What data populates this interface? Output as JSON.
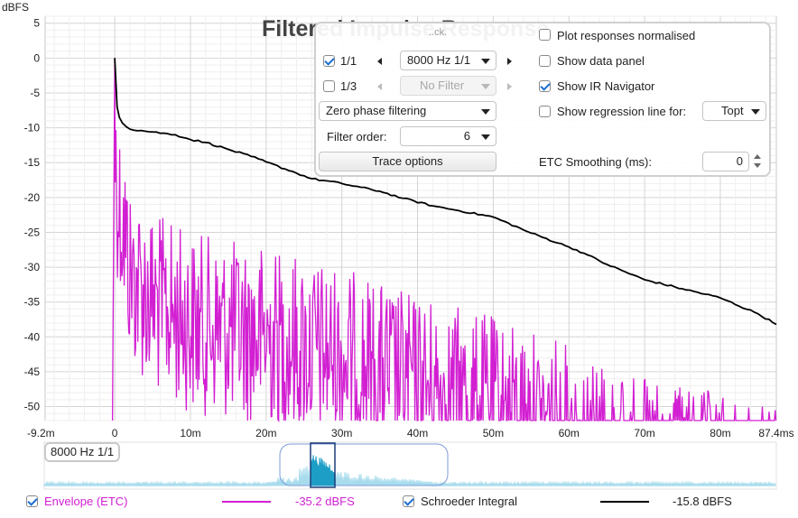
{
  "chart_data": {
    "type": "line",
    "title": "Filtered Impulse Response",
    "ylabel": "dBFS",
    "xlabel": "",
    "xlim": [
      -9.2,
      87.4
    ],
    "ylim": [
      -52,
      6
    ],
    "x_tick_labels": [
      "-9.2m",
      "0",
      "10m",
      "20m",
      "30m",
      "40m",
      "50m",
      "60m",
      "70m",
      "80m",
      "87.4ms"
    ],
    "x_tick_values": [
      -9.2,
      0,
      10,
      20,
      30,
      40,
      50,
      60,
      70,
      80,
      87.4
    ],
    "y_tick_labels": [
      "5",
      "0",
      "-5",
      "-10",
      "-15",
      "-20",
      "-25",
      "-30",
      "-35",
      "-40",
      "-45",
      "-50"
    ],
    "y_tick_values": [
      5,
      0,
      -5,
      -10,
      -15,
      -20,
      -25,
      -30,
      -35,
      -40,
      -45,
      -50
    ],
    "grid": true,
    "series": [
      {
        "name": "Envelope (ETC)",
        "color": "#d21fd2",
        "style": "dense noisy decaying envelope",
        "envelope_x": [
          0,
          0.5,
          1,
          2,
          5,
          10,
          20,
          30,
          40,
          50,
          60,
          70,
          80,
          87.4
        ],
        "envelope_peak_y": [
          0,
          -8,
          -10,
          -18,
          -22,
          -25,
          -27,
          -30,
          -34,
          -37,
          -41,
          -46,
          -48,
          -50
        ]
      },
      {
        "name": "Schroeder Integral",
        "color": "#000000",
        "x": [
          0,
          0.3,
          0.6,
          1,
          2,
          5,
          8,
          10,
          12,
          15,
          18,
          20,
          24,
          26,
          30,
          35,
          38,
          42,
          45,
          50,
          55,
          60,
          62,
          65,
          70,
          75,
          80,
          85,
          87.4
        ],
        "y": [
          0,
          -7,
          -8.5,
          -9.3,
          -10.2,
          -10.6,
          -11,
          -11.7,
          -12.1,
          -13.1,
          -14.1,
          -14.9,
          -16.5,
          -17.3,
          -18.0,
          -19.1,
          -20.1,
          -21.2,
          -21.8,
          -22.8,
          -25.1,
          -27.1,
          -28,
          -29.6,
          -31.8,
          -33.1,
          -34.4,
          -36.7,
          -38.2
        ]
      }
    ]
  },
  "overlay": {
    "partial_label": "..ck.",
    "plot_normalised_label": "Plot responses normalised",
    "row1_check_label": "1/1",
    "row1_dropdown": "8000 Hz 1/1",
    "row2_check_label": "1/3",
    "row2_dropdown": "No Filter",
    "show_data_panel_label": "Show data panel",
    "show_ir_navigator_label": "Show IR Navigator",
    "phase_dropdown": "Zero phase filtering",
    "show_regression_label": "Show regression line for:",
    "regression_dropdown": "Topt",
    "filter_order_label": "Filter order:",
    "filter_order_value": "6",
    "trace_options_label": "Trace options",
    "etc_smoothing_label": "ETC Smoothing (ms):",
    "etc_smoothing_value": "0"
  },
  "navigator": {
    "label": "8000 Hz 1/1"
  },
  "legend": {
    "envelope_label": "Envelope (ETC)",
    "envelope_value": "-35.2 dBFS",
    "schroeder_label": "Schroeder Integral",
    "schroeder_value": "-15.8 dBFS"
  }
}
